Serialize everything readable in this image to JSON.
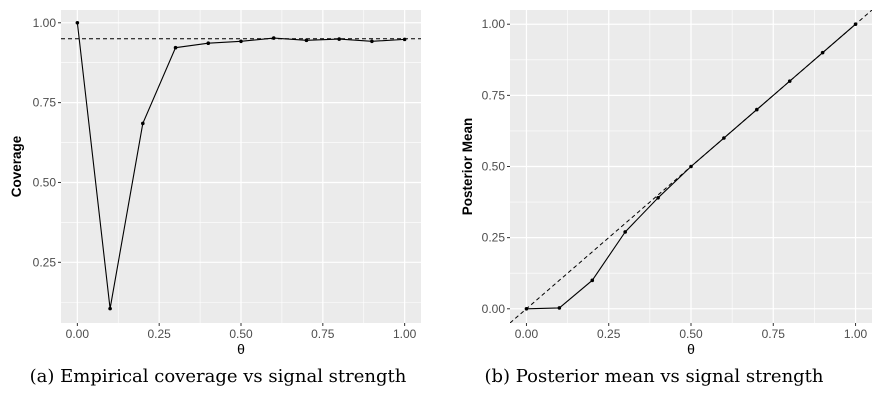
{
  "chart_data": [
    {
      "type": "line",
      "title": "",
      "caption": "(a) Empirical coverage vs signal strength",
      "xlabel": "θ",
      "ylabel": "Coverage",
      "xlim": [
        -0.05,
        1.05
      ],
      "ylim": [
        0.06,
        1.04
      ],
      "x_ticks": [
        "0.00",
        "0.25",
        "0.50",
        "0.75",
        "1.00"
      ],
      "y_ticks": [
        "0.25",
        "0.50",
        "0.75",
        "1.00"
      ],
      "x_tick_values": [
        0,
        0.25,
        0.5,
        0.75,
        1
      ],
      "y_tick_values": [
        0.25,
        0.5,
        0.75,
        1.0
      ],
      "grid": true,
      "background": "#ebebeb",
      "reference_line": {
        "type": "horizontal",
        "y": 0.95,
        "style": "dashed"
      },
      "series": [
        {
          "x": [
            0.0,
            0.1,
            0.2,
            0.3,
            0.4,
            0.5,
            0.6,
            0.7,
            0.8,
            0.9,
            1.0
          ],
          "y": [
            1.0,
            0.105,
            0.685,
            0.922,
            0.936,
            0.942,
            0.952,
            0.945,
            0.949,
            0.942,
            0.948
          ]
        }
      ]
    },
    {
      "type": "line",
      "title": "",
      "caption": "(b) Posterior mean vs signal strength",
      "xlabel": "θ",
      "ylabel": "Posterior Mean",
      "xlim": [
        -0.05,
        1.05
      ],
      "ylim": [
        -0.05,
        1.05
      ],
      "x_ticks": [
        "0.00",
        "0.25",
        "0.50",
        "0.75",
        "1.00"
      ],
      "y_ticks": [
        "0.00",
        "0.25",
        "0.50",
        "0.75",
        "1.00"
      ],
      "x_tick_values": [
        0,
        0.25,
        0.5,
        0.75,
        1
      ],
      "y_tick_values": [
        0,
        0.25,
        0.5,
        0.75,
        1.0
      ],
      "grid": true,
      "background": "#ebebeb",
      "reference_line": {
        "type": "identity",
        "slope": 1,
        "intercept": 0,
        "style": "dashed"
      },
      "series": [
        {
          "x": [
            0.0,
            0.1,
            0.2,
            0.3,
            0.4,
            0.5,
            0.6,
            0.7,
            0.8,
            0.9,
            1.0
          ],
          "y": [
            0.0,
            0.003,
            0.1,
            0.27,
            0.39,
            0.5,
            0.6,
            0.7,
            0.8,
            0.9,
            1.0
          ]
        }
      ]
    }
  ]
}
